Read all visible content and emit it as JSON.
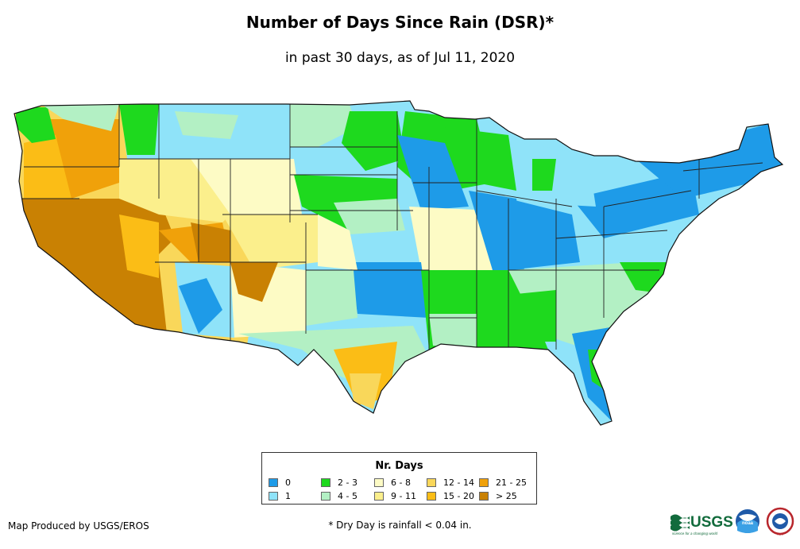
{
  "title": "Number of Days Since Rain (DSR)*",
  "subtitle": "in past 30 days, as of Jul 11, 2020",
  "legend": {
    "title": "Nr. Days",
    "items": [
      {
        "label": "0",
        "color": "#1e9be8"
      },
      {
        "label": "1",
        "color": "#8fe3f9"
      },
      {
        "label": "2 - 3",
        "color": "#1ed91e"
      },
      {
        "label": "4 - 5",
        "color": "#b3f0c4"
      },
      {
        "label": "6 - 8",
        "color": "#fdfbc5"
      },
      {
        "label": "9 - 11",
        "color": "#fbef8c"
      },
      {
        "label": "12 - 14",
        "color": "#f9d75a"
      },
      {
        "label": "15 - 20",
        "color": "#fbbd16"
      },
      {
        "label": "21 - 25",
        "color": "#f0a10a"
      },
      {
        "label": "> 25",
        "color": "#c98103"
      }
    ]
  },
  "credit": "Map Produced by USGS/EROS",
  "footnote": "* Dry Day is rainfall < 0.04 in.",
  "logos": {
    "usgs_text": "USGS",
    "usgs_tagline": "science for a changing world",
    "noaa_text": "noaa",
    "nws_text": "NWS"
  }
}
